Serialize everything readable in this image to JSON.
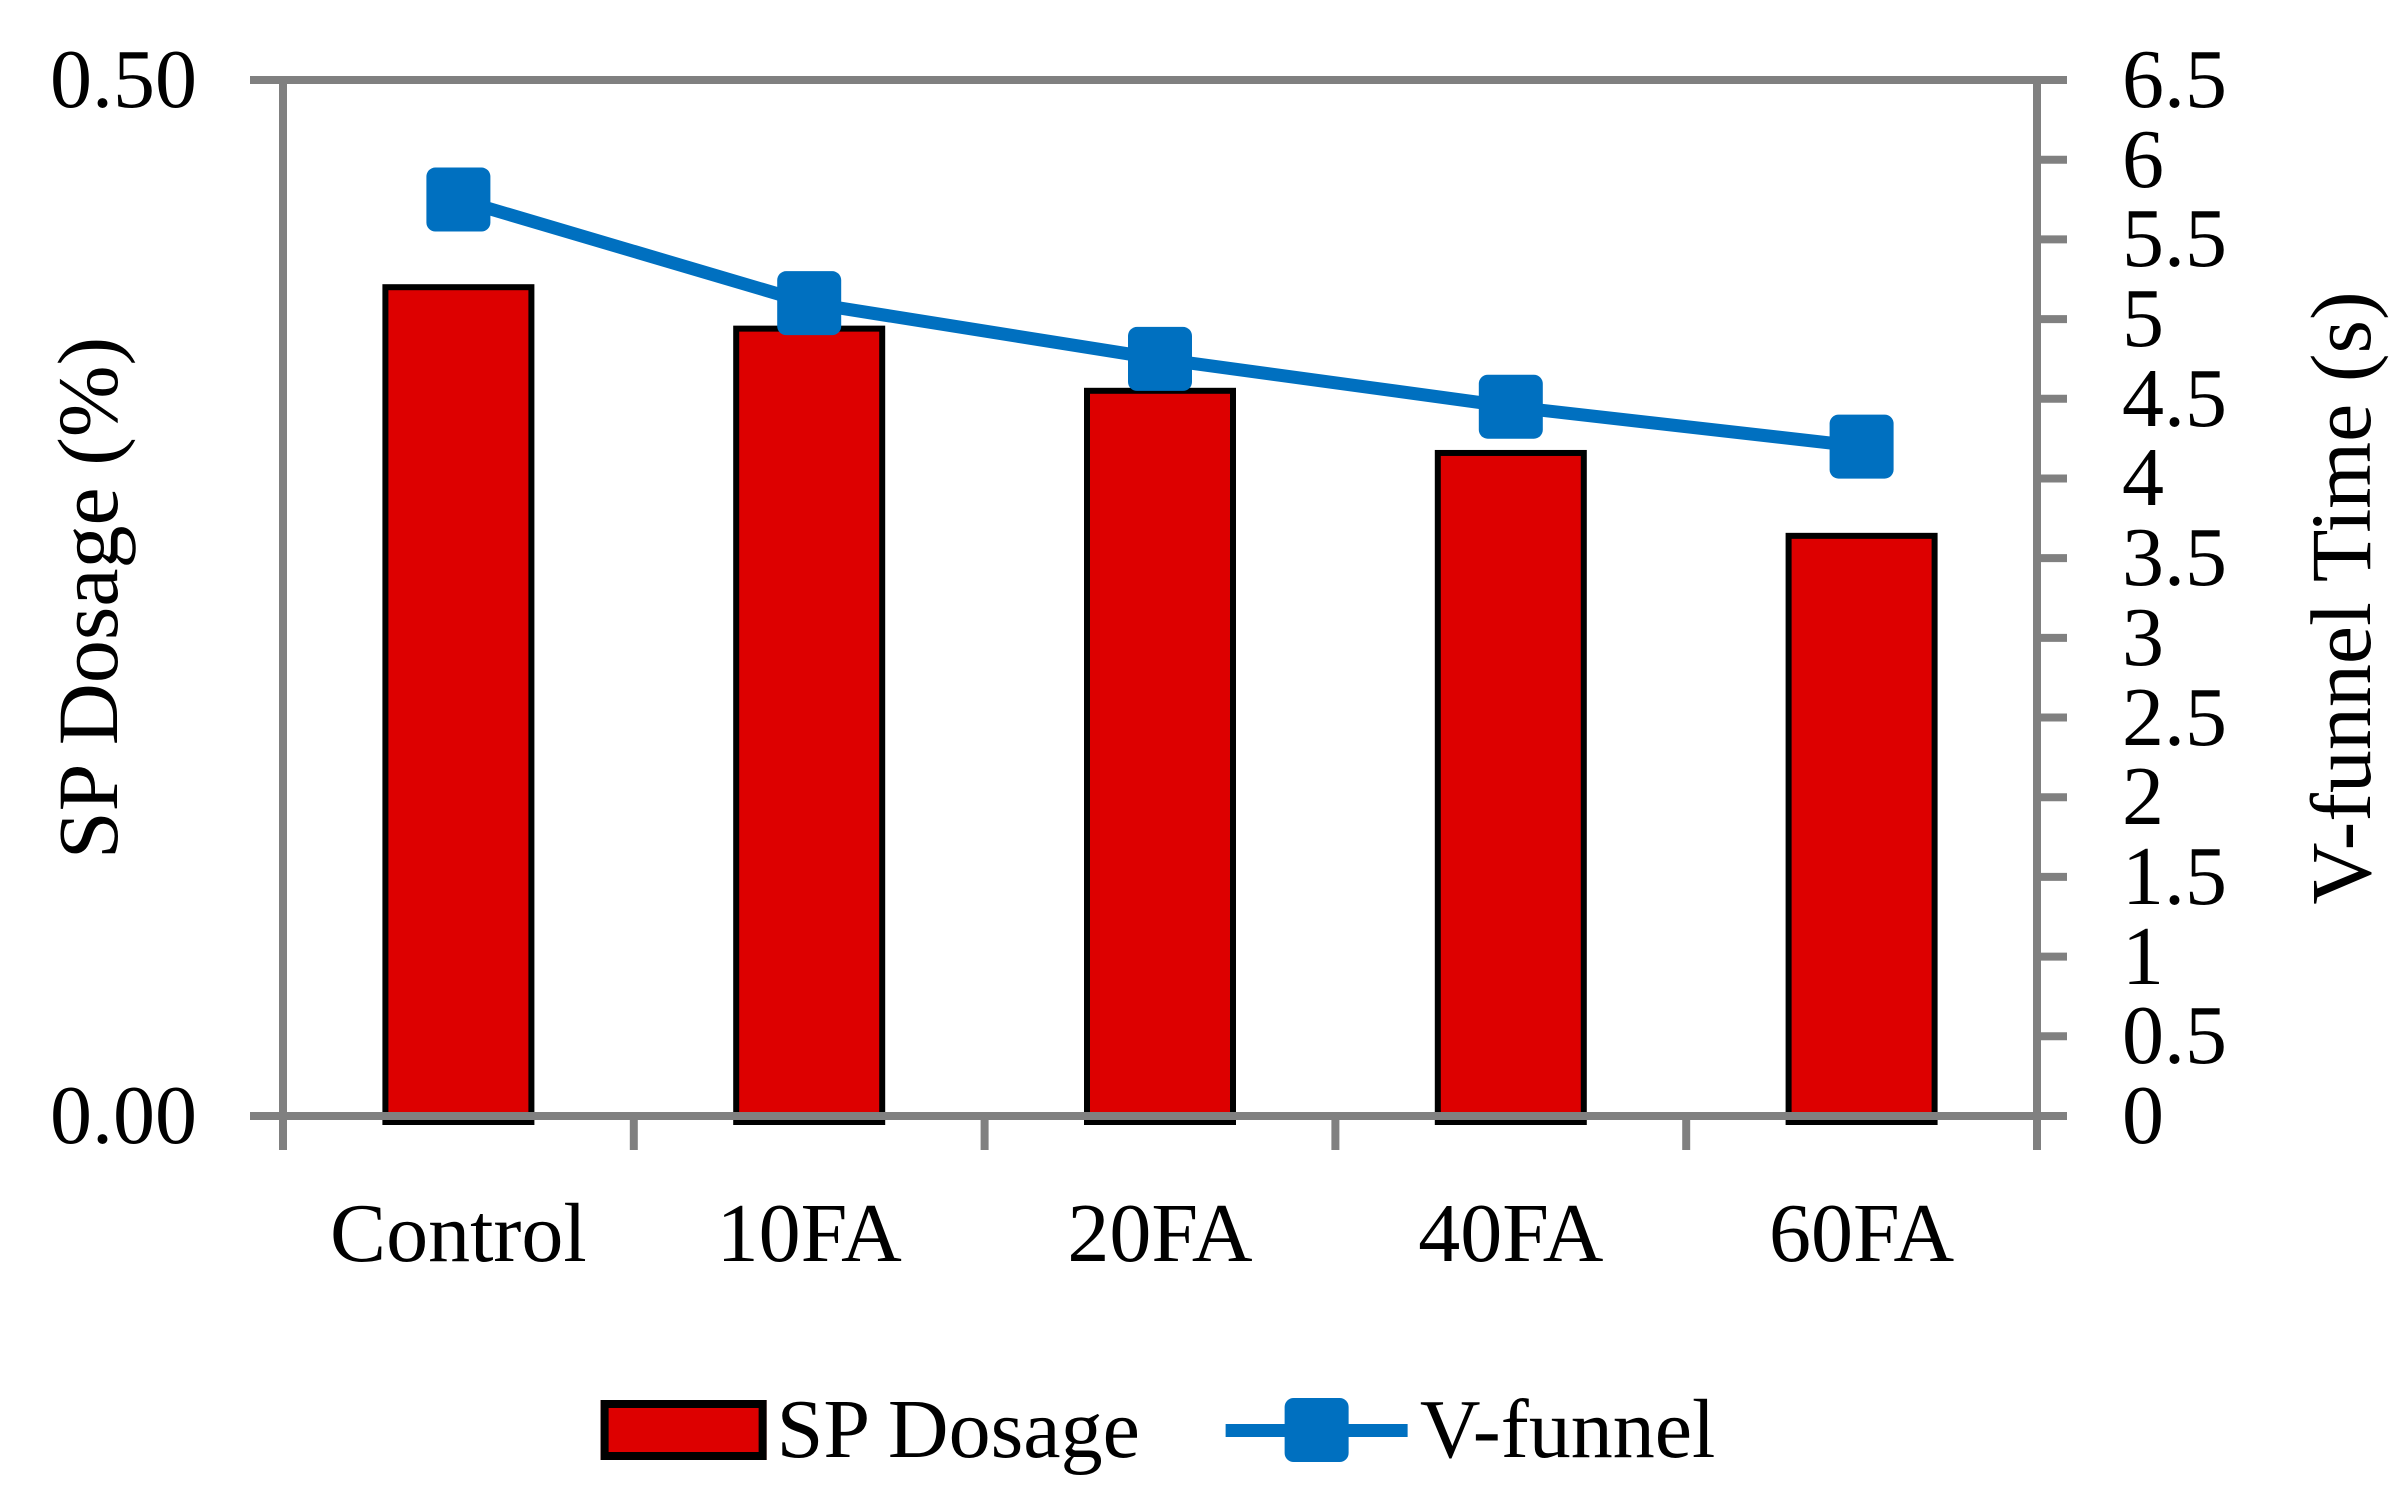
{
  "chart_data": {
    "type": "bar",
    "subtype": "combo-bar-line-dual-axis",
    "categories": [
      "Control",
      "10FA",
      "20FA",
      "40FA",
      "60FA"
    ],
    "series": [
      {
        "name": "SP Dosage",
        "chart_type": "bar",
        "axis": "left",
        "values": [
          0.4,
          0.38,
          0.35,
          0.32,
          0.28
        ],
        "color": "#DD0000",
        "border_color": "#000000"
      },
      {
        "name": "V-funnel",
        "chart_type": "line",
        "marker": "square",
        "axis": "right",
        "values": [
          5.75,
          5.1,
          4.75,
          4.45,
          4.2
        ],
        "color": "#0070C0"
      }
    ],
    "left_axis": {
      "label": "SP Dosage (%)",
      "min": 0,
      "max": 0.5,
      "tick_labels": [
        "0.00",
        "0.50"
      ],
      "tick_values": [
        0,
        0.5
      ]
    },
    "right_axis": {
      "label": "V-funnel Time (s)",
      "min": 0,
      "max": 6.5,
      "step": 0.5,
      "tick_labels": [
        "0",
        "0.5",
        "1",
        "1.5",
        "2",
        "2.5",
        "3",
        "3.5",
        "4",
        "4.5",
        "5",
        "5.5",
        "6",
        "6.5"
      ]
    },
    "legend": {
      "position": "bottom",
      "entries": [
        "SP Dosage",
        "V-funnel"
      ]
    },
    "grid": false,
    "title": ""
  },
  "colors": {
    "bar_fill": "#DD0000",
    "bar_border": "#000000",
    "line": "#0070C0",
    "axis": "#808080",
    "text": "#000000",
    "background": "#FFFFFF"
  }
}
